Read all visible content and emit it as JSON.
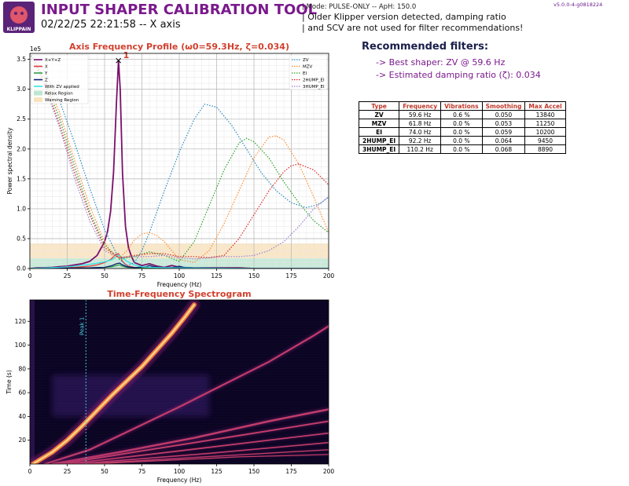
{
  "header": {
    "title": "INPUT SHAPER CALIBRATION TOOL",
    "subtitle": "02/22/25 22:21:58 -- X axis",
    "mode_line": "| Mode: PULSE-ONLY -- ApH: 150.0",
    "note_line1": "| Older Klipper version detected, damping ratio",
    "note_line2": "| and SCV are not used for filter recommendations!",
    "version": "v5.0.0-4-g0818224",
    "logo_text": "KLIPPAIN"
  },
  "recommendations": {
    "title": "Recommended filters:",
    "best_shaper": "-> Best shaper: ZV @ 59.6 Hz",
    "damping": "-> Estimated damping ratio (ζ): 0.034"
  },
  "filters_table": {
    "headers": [
      "Type",
      "Frequency",
      "Vibrations",
      "Smoothing",
      "Max Accel"
    ],
    "rows": [
      [
        "ZV",
        "59.6 Hz",
        "0.6 %",
        "0.050",
        "13840"
      ],
      [
        "MZV",
        "61.8 Hz",
        "0.0 %",
        "0.053",
        "11250"
      ],
      [
        "EI",
        "74.0 Hz",
        "0.0 %",
        "0.059",
        "10200"
      ],
      [
        "2HUMP_EI",
        "92.2 Hz",
        "0.0 %",
        "0.064",
        "9450"
      ],
      [
        "3HUMP_EI",
        "110.2 Hz",
        "0.0 %",
        "0.068",
        "8890"
      ]
    ]
  },
  "colors": {
    "xyz": "#7a0f6c",
    "x": "#e23c3c",
    "y": "#2e9e4a",
    "z": "#0b1e6e",
    "zv_applied": "#35e0e6",
    "relax": "#bfe6d2",
    "warning": "#f9e3bd",
    "zv": "#2b8cbe",
    "mzv": "#ff8c2e",
    "ei": "#2ca02c",
    "2hump": "#d62728",
    "3hump": "#9b7fd0",
    "title_red": "#d2402e"
  },
  "chart_data": [
    {
      "type": "line",
      "title": "Axis Frequency Profile (ω0=59.3Hz, ζ=0.034)",
      "xlabel": "Frequency (Hz)",
      "ylabel": "Power spectral density",
      "y_multiplier": "1e5",
      "xlim": [
        0,
        200
      ],
      "ylim": [
        0,
        3.6
      ],
      "x_ticks": [
        0,
        25,
        50,
        75,
        100,
        125,
        150,
        175,
        200
      ],
      "y_ticks": [
        0.0,
        0.5,
        1.0,
        1.5,
        2.0,
        2.5,
        3.0,
        3.5
      ],
      "grid": true,
      "peak": {
        "label": "1",
        "x": 59.3,
        "y": 3.48
      },
      "bands": [
        {
          "name": "Relax Region",
          "y": [
            0.0,
            0.17
          ]
        },
        {
          "name": "Warning Region",
          "y": [
            0.17,
            0.42
          ]
        }
      ],
      "legend_left": [
        "X+Y+Z",
        "X",
        "Y",
        "Z",
        "With ZV applied",
        "Relax Region",
        "Warning Region"
      ],
      "legend_right": [
        "ZV",
        "MZV",
        "EI",
        "2HUMP_EI",
        "3HUMP_EI"
      ],
      "series": [
        {
          "name": "X+Y+Z",
          "style": "solid",
          "color": "xyz",
          "x": [
            0,
            5,
            10,
            15,
            20,
            25,
            30,
            35,
            40,
            45,
            50,
            52,
            54,
            56,
            58,
            59.3,
            60.5,
            62,
            64,
            66,
            68,
            70,
            75,
            80,
            85,
            90,
            95,
            100,
            110,
            120,
            130,
            140,
            150,
            160,
            170,
            180,
            190,
            200
          ],
          "y": [
            0,
            0.01,
            0.015,
            0.02,
            0.03,
            0.04,
            0.06,
            0.08,
            0.12,
            0.22,
            0.45,
            0.62,
            0.95,
            1.6,
            2.8,
            3.48,
            3.0,
            1.6,
            0.7,
            0.35,
            0.2,
            0.1,
            0.05,
            0.08,
            0.04,
            0.02,
            0.05,
            0.02,
            0.01,
            0.01,
            0.01,
            0.01,
            0.0,
            0.0,
            0.0,
            0.0,
            0.0,
            0.0
          ]
        },
        {
          "name": "X",
          "style": "solid",
          "color": "x",
          "x": [
            0,
            10,
            20,
            30,
            40,
            45,
            50,
            54,
            56,
            58,
            59.3,
            60.5,
            62,
            64,
            66,
            70,
            75,
            80,
            90,
            100,
            120,
            150,
            200
          ],
          "y": [
            0,
            0.005,
            0.01,
            0.02,
            0.04,
            0.06,
            0.1,
            0.15,
            0.2,
            0.24,
            0.25,
            0.2,
            0.12,
            0.07,
            0.04,
            0.02,
            0.015,
            0.02,
            0.01,
            0.005,
            0.005,
            0.0,
            0.0
          ]
        },
        {
          "name": "Y",
          "style": "solid",
          "color": "y",
          "x": [
            0,
            20,
            40,
            50,
            55,
            58,
            60,
            62,
            65,
            70,
            80,
            100,
            150,
            200
          ],
          "y": [
            0,
            0.005,
            0.01,
            0.02,
            0.03,
            0.05,
            0.06,
            0.04,
            0.02,
            0.01,
            0.01,
            0.005,
            0.0,
            0.0
          ]
        },
        {
          "name": "Z",
          "style": "solid",
          "color": "z",
          "x": [
            0,
            20,
            40,
            50,
            55,
            58,
            60,
            62,
            65,
            70,
            78,
            80,
            83,
            90,
            97,
            100,
            103,
            110,
            150,
            200
          ],
          "y": [
            0,
            0.005,
            0.01,
            0.02,
            0.05,
            0.08,
            0.09,
            0.06,
            0.03,
            0.015,
            0.03,
            0.05,
            0.03,
            0.01,
            0.02,
            0.04,
            0.02,
            0.01,
            0.0,
            0.0
          ]
        },
        {
          "name": "With ZV applied",
          "style": "solid",
          "color": "zv_applied",
          "x": [
            0,
            10,
            20,
            30,
            40,
            50,
            55,
            58,
            60,
            62,
            65,
            70,
            75,
            80,
            100,
            150,
            200
          ],
          "y": [
            0,
            0.01,
            0.02,
            0.04,
            0.07,
            0.11,
            0.15,
            0.2,
            0.22,
            0.18,
            0.12,
            0.06,
            0.03,
            0.02,
            0.01,
            0.0,
            0.0
          ]
        },
        {
          "name": "ZV",
          "style": "dotted",
          "color": "zv",
          "x": [
            0,
            10,
            20,
            30,
            40,
            50,
            60,
            65,
            70,
            75,
            80,
            90,
            100,
            110,
            117,
            125,
            135,
            145,
            155,
            165,
            175,
            185,
            190,
            195,
            200
          ],
          "y": [
            3.6,
            3.3,
            2.8,
            2.1,
            1.35,
            0.65,
            0.15,
            0.05,
            0.1,
            0.3,
            0.6,
            1.3,
            1.95,
            2.5,
            2.75,
            2.7,
            2.4,
            2.0,
            1.6,
            1.3,
            1.1,
            1.02,
            1.05,
            1.1,
            1.2
          ]
        },
        {
          "name": "MZV",
          "style": "dotted",
          "color": "mzv",
          "x": [
            0,
            10,
            20,
            30,
            40,
            50,
            55,
            60,
            65,
            70,
            75,
            80,
            85,
            90,
            95,
            100,
            110,
            120,
            130,
            140,
            150,
            160,
            165,
            170,
            180,
            190,
            200
          ],
          "y": [
            3.6,
            3.2,
            2.6,
            1.8,
            1.05,
            0.45,
            0.22,
            0.18,
            0.3,
            0.48,
            0.58,
            0.6,
            0.55,
            0.45,
            0.3,
            0.15,
            0.1,
            0.3,
            0.75,
            1.3,
            1.85,
            2.2,
            2.22,
            2.15,
            1.75,
            1.2,
            0.6
          ]
        },
        {
          "name": "EI",
          "style": "dotted",
          "color": "ei",
          "x": [
            0,
            10,
            20,
            30,
            40,
            50,
            60,
            70,
            80,
            90,
            100,
            110,
            120,
            130,
            140,
            145,
            150,
            160,
            170,
            180,
            190,
            200
          ],
          "y": [
            3.6,
            3.15,
            2.5,
            1.7,
            0.95,
            0.4,
            0.16,
            0.2,
            0.28,
            0.22,
            0.12,
            0.45,
            1.05,
            1.65,
            2.1,
            2.18,
            2.12,
            1.85,
            1.45,
            1.1,
            0.8,
            0.6
          ]
        },
        {
          "name": "2HUMP_EI",
          "style": "dotted",
          "color": "2hump",
          "x": [
            0,
            10,
            20,
            30,
            40,
            50,
            60,
            70,
            80,
            90,
            100,
            110,
            120,
            130,
            140,
            150,
            160,
            170,
            175,
            180,
            190,
            200
          ],
          "y": [
            3.6,
            3.1,
            2.4,
            1.6,
            0.9,
            0.35,
            0.18,
            0.22,
            0.25,
            0.25,
            0.2,
            0.2,
            0.18,
            0.22,
            0.5,
            0.9,
            1.3,
            1.62,
            1.72,
            1.75,
            1.65,
            1.4
          ]
        },
        {
          "name": "3HUMP_EI",
          "style": "dotted",
          "color": "3hump",
          "x": [
            0,
            10,
            20,
            30,
            40,
            50,
            60,
            70,
            80,
            90,
            100,
            110,
            120,
            130,
            140,
            150,
            160,
            170,
            180,
            190,
            200
          ],
          "y": [
            3.6,
            3.05,
            2.35,
            1.5,
            0.8,
            0.3,
            0.18,
            0.2,
            0.2,
            0.22,
            0.18,
            0.16,
            0.18,
            0.2,
            0.2,
            0.22,
            0.3,
            0.45,
            0.7,
            1.0,
            1.2
          ]
        }
      ]
    },
    {
      "type": "heatmap",
      "title": "Time-Frequency Spectrogram",
      "xlabel": "Frequency (Hz)",
      "ylabel": "Time (s)",
      "xlim": [
        0,
        200
      ],
      "ylim": [
        0,
        138
      ],
      "x_ticks": [
        0,
        25,
        50,
        75,
        100,
        125,
        150,
        175,
        200
      ],
      "y_ticks": [
        20,
        40,
        60,
        80,
        100,
        120
      ],
      "peak_marker": {
        "label": "Peak 1",
        "x": 37.5
      },
      "bright_region": {
        "x": [
          15,
          120
        ],
        "y": [
          40,
          75
        ]
      },
      "ridges": [
        {
          "points": [
            [
              2,
              0
            ],
            [
              15,
              10
            ],
            [
              25,
              20
            ],
            [
              35,
              32
            ],
            [
              45,
              45
            ],
            [
              55,
              58
            ],
            [
              65,
              70
            ],
            [
              75,
              82
            ],
            [
              85,
              96
            ],
            [
              95,
              110
            ],
            [
              104,
              124
            ],
            [
              110,
              134
            ]
          ],
          "width": 6,
          "intensity": 1.0
        },
        {
          "points": [
            [
              10,
              0
            ],
            [
              40,
              12
            ],
            [
              70,
              30
            ],
            [
              100,
              48
            ],
            [
              130,
              67
            ],
            [
              160,
              86
            ],
            [
              190,
              108
            ],
            [
              200,
              116
            ]
          ],
          "width": 2.2,
          "intensity": 0.85
        },
        {
          "points": [
            [
              15,
              0
            ],
            [
              60,
              10
            ],
            [
              110,
              22
            ],
            [
              160,
              36
            ],
            [
              200,
              46
            ]
          ],
          "width": 2.5,
          "intensity": 0.75
        },
        {
          "points": [
            [
              20,
              0
            ],
            [
              80,
              12
            ],
            [
              140,
              24
            ],
            [
              200,
              36
            ]
          ],
          "width": 2,
          "intensity": 0.6
        },
        {
          "points": [
            [
              25,
              0
            ],
            [
              100,
              11
            ],
            [
              200,
              26
            ]
          ],
          "width": 1.8,
          "intensity": 0.5
        },
        {
          "points": [
            [
              30,
              0
            ],
            [
              120,
              9
            ],
            [
              200,
              18
            ]
          ],
          "width": 1.6,
          "intensity": 0.45
        },
        {
          "points": [
            [
              35,
              0
            ],
            [
              130,
              7
            ],
            [
              200,
              12
            ]
          ],
          "width": 1.4,
          "intensity": 0.4
        },
        {
          "points": [
            [
              40,
              0
            ],
            [
              140,
              6
            ],
            [
              200,
              8
            ]
          ],
          "width": 1.3,
          "intensity": 0.35
        }
      ]
    }
  ]
}
